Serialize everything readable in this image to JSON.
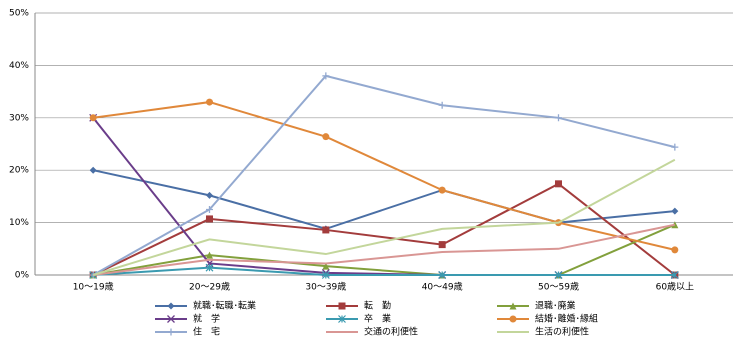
{
  "chart_data": {
    "type": "line",
    "categories": [
      "10～19歳",
      "20～29歳",
      "30～39歳",
      "40～49歳",
      "50～59歳",
      "60歳以上"
    ],
    "ylim": [
      0,
      50
    ],
    "yticks": [
      {
        "value": 0,
        "label": "0%"
      },
      {
        "value": 10,
        "label": "10%"
      },
      {
        "value": 20,
        "label": "20%"
      },
      {
        "value": 30,
        "label": "30%"
      },
      {
        "value": 40,
        "label": "40%"
      },
      {
        "value": 50,
        "label": "50%"
      }
    ],
    "grid": true,
    "legend": "bottom",
    "series": [
      {
        "name": "就職･転職･転業",
        "color": "#4a6fa5",
        "marker": "diamond",
        "values": [
          20,
          15.2,
          8.8,
          16.2,
          10,
          12.2
        ]
      },
      {
        "name": "転　勤",
        "color": "#a33c3c",
        "marker": "square",
        "values": [
          0,
          10.7,
          8.6,
          5.8,
          17.4,
          0
        ]
      },
      {
        "name": "退職･廃業",
        "color": "#82a03c",
        "marker": "triangle",
        "values": [
          0,
          3.8,
          1.7,
          0,
          0,
          9.6
        ]
      },
      {
        "name": "就　学",
        "color": "#6a3d8a",
        "marker": "x",
        "values": [
          30,
          2.2,
          0.4,
          0,
          0,
          0
        ]
      },
      {
        "name": "卒　業",
        "color": "#3a9ab0",
        "marker": "star",
        "values": [
          0,
          1.4,
          0,
          0,
          0,
          0
        ]
      },
      {
        "name": "結婚･離婚･縁組",
        "color": "#e0883a",
        "marker": "circle",
        "values": [
          30,
          33,
          26.4,
          16.2,
          10,
          4.8
        ]
      },
      {
        "name": "住　宅",
        "color": "#93a9d0",
        "marker": "plus",
        "values": [
          0,
          12.5,
          38,
          32.4,
          30,
          24.4
        ]
      },
      {
        "name": "交通の利便性",
        "color": "#d99694",
        "marker": "none",
        "values": [
          0,
          2.9,
          2.2,
          4.4,
          5,
          9.6
        ]
      },
      {
        "name": "生活の利便性",
        "color": "#c3d69b",
        "marker": "none",
        "values": [
          0,
          6.8,
          4,
          8.8,
          10,
          22
        ]
      }
    ]
  }
}
